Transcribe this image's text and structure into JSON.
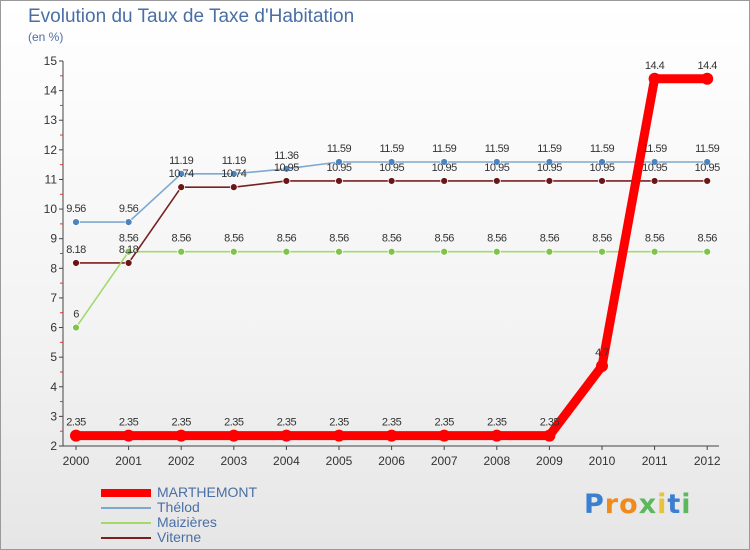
{
  "header": {
    "title": "Evolution du Taux de Taxe d'Habitation",
    "subtitle": "(en %)"
  },
  "chart_data": {
    "type": "line",
    "title": "Evolution du Taux de Taxe d'Habitation",
    "ylabel": "(en %)",
    "xlabel": "",
    "ylim": [
      2,
      15
    ],
    "yticks": [
      2,
      3,
      4,
      5,
      6,
      7,
      8,
      9,
      10,
      11,
      12,
      13,
      14,
      15
    ],
    "categories": [
      "2000",
      "2001",
      "2002",
      "2003",
      "2004",
      "2005",
      "2006",
      "2007",
      "2008",
      "2009",
      "2010",
      "2011",
      "2012"
    ],
    "grid": false,
    "legend_position": "bottom-left",
    "series": [
      {
        "name": "MARTHEMONT",
        "color": "#ff0000",
        "marker_color": "#ff0000",
        "values": [
          2.35,
          2.35,
          2.35,
          2.35,
          2.35,
          2.35,
          2.35,
          2.35,
          2.35,
          2.35,
          4.7,
          14.4,
          14.4
        ],
        "labels": [
          "2.35",
          "2.35",
          "2.35",
          "2.35",
          "2.35",
          "2.35",
          "2.35",
          "2.35",
          "2.35",
          "2.35",
          "4.7",
          "14.4",
          "14.4"
        ]
      },
      {
        "name": "Thélod",
        "color": "#7fa8d0",
        "marker_color": "#4b84bf",
        "values": [
          9.56,
          9.56,
          11.19,
          11.19,
          11.36,
          11.59,
          11.59,
          11.59,
          11.59,
          11.59,
          11.59,
          11.59,
          11.59
        ],
        "labels": [
          "9.56",
          "9.56",
          "11.19",
          "11.19",
          "11.36",
          "11.59",
          "11.59",
          "11.59",
          "11.59",
          "11.59",
          "11.59",
          "11.59",
          "11.59"
        ]
      },
      {
        "name": "Maizières",
        "color": "#a4d96c",
        "marker_color": "#7fc34a",
        "values": [
          6,
          8.56,
          8.56,
          8.56,
          8.56,
          8.56,
          8.56,
          8.56,
          8.56,
          8.56,
          8.56,
          8.56,
          8.56
        ],
        "labels": [
          "6",
          "8.56",
          "8.56",
          "8.56",
          "8.56",
          "8.56",
          "8.56",
          "8.56",
          "8.56",
          "8.56",
          "8.56",
          "8.56",
          "8.56"
        ]
      },
      {
        "name": "Viterne",
        "color": "#7a2020",
        "marker_color": "#6b1616",
        "values": [
          8.18,
          8.18,
          10.74,
          10.74,
          10.95,
          10.95,
          10.95,
          10.95,
          10.95,
          10.95,
          10.95,
          10.95,
          10.95
        ],
        "labels": [
          "8.18",
          "8.18",
          "10.74",
          "10.74",
          "10.95",
          "10.95",
          "10.95",
          "10.95",
          "10.95",
          "10.95",
          "10.95",
          "10.95",
          "10.95"
        ]
      }
    ]
  },
  "logo": {
    "letters": [
      "P",
      "r",
      "o",
      "x",
      "i",
      "t",
      "i"
    ],
    "colors": [
      "#3a7fd0",
      "#f08a1c",
      "#f08a1c",
      "#5cb85c",
      "#e8c23a",
      "#3a7fd0",
      "#5cb85c"
    ]
  }
}
